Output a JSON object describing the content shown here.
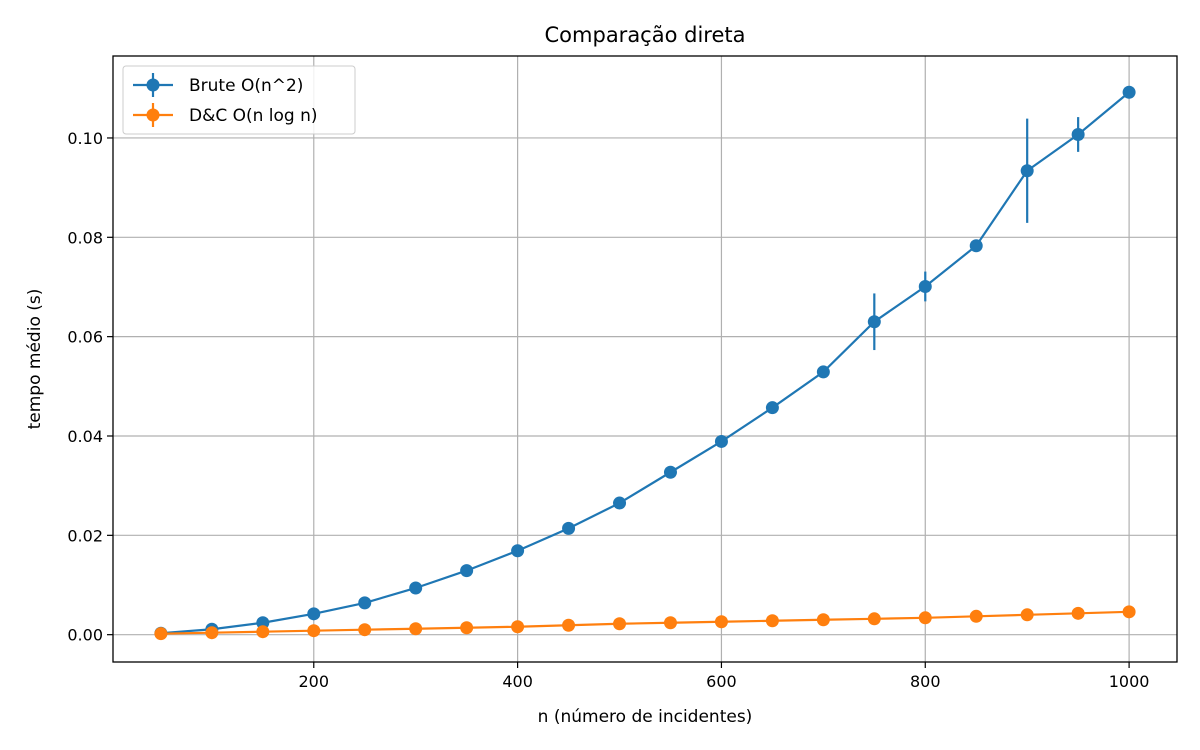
{
  "chart_data": {
    "type": "line",
    "title": "Comparação direta",
    "xlabel": "n (número de incidentes)",
    "ylabel": "tempo médio (s)",
    "xlim": [
      3,
      1047
    ],
    "ylim": [
      -0.0055,
      0.1165
    ],
    "grid": true,
    "legend_position": "top-left",
    "x_ticks": [
      200,
      400,
      600,
      800,
      1000
    ],
    "x_tick_labels": [
      "200",
      "400",
      "600",
      "800",
      "1000"
    ],
    "y_ticks": [
      0.0,
      0.02,
      0.04,
      0.06,
      0.08,
      0.1
    ],
    "y_tick_labels": [
      "0.00",
      "0.02",
      "0.04",
      "0.06",
      "0.08",
      "0.10"
    ],
    "x": [
      50,
      100,
      150,
      200,
      250,
      300,
      350,
      400,
      450,
      500,
      550,
      600,
      650,
      700,
      750,
      800,
      850,
      900,
      950,
      1000
    ],
    "series": [
      {
        "name": "Brute O(n^2)",
        "color": "#1f77b4",
        "values": [
          0.0003,
          0.0011,
          0.0024,
          0.0042,
          0.0064,
          0.0094,
          0.0129,
          0.0169,
          0.0214,
          0.0265,
          0.0327,
          0.0389,
          0.0457,
          0.0529,
          0.063,
          0.0701,
          0.0783,
          0.0934,
          0.1007,
          0.1092
        ],
        "error": [
          0.0,
          0.0,
          0.0,
          0.0,
          0.0,
          0.0,
          0.0,
          0.0,
          0.0,
          0.0,
          0.0,
          0.0,
          0.0,
          0.0,
          0.0057,
          0.003,
          0.0,
          0.0105,
          0.0035,
          0.0012
        ]
      },
      {
        "name": "D&C O(n log n)",
        "color": "#ff7f0e",
        "values": [
          0.0002,
          0.0004,
          0.0006,
          0.0008,
          0.001,
          0.0012,
          0.0014,
          0.0016,
          0.0019,
          0.0022,
          0.0024,
          0.0026,
          0.0028,
          0.003,
          0.0032,
          0.0034,
          0.0037,
          0.004,
          0.0043,
          0.0046
        ],
        "error": [
          0.0,
          0.0,
          0.0,
          0.0,
          0.0,
          0.0,
          0.0,
          0.0,
          0.0,
          0.0,
          0.0,
          0.0,
          0.0,
          0.0,
          0.0,
          0.0,
          0.0,
          0.0,
          0.0,
          0.0
        ]
      }
    ]
  }
}
